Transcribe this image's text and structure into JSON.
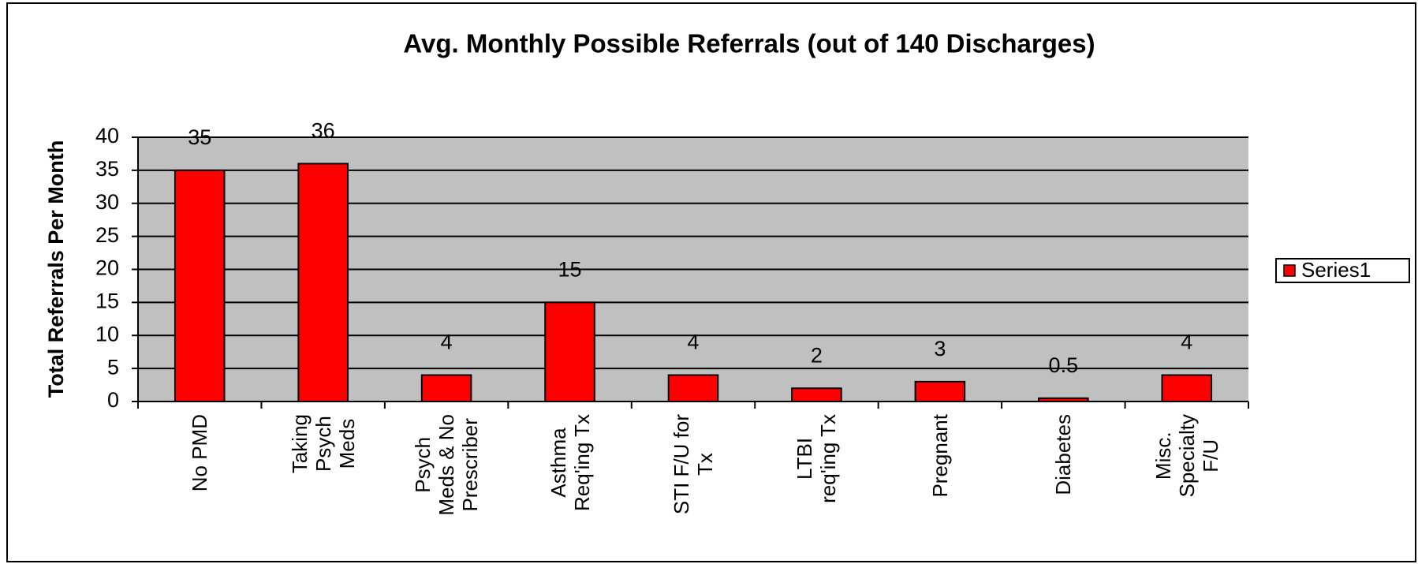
{
  "chart_data": {
    "type": "bar",
    "title": "Avg. Monthly Possible Referrals  (out of 140 Discharges)",
    "y_label": "Total Referrals Per Month",
    "categories": [
      "No PMD",
      "Taking\nPsych\nMeds",
      "Psych\nMeds & No\nPrescriber",
      "Asthma\nReq'ing Tx",
      "STI F/U for\nTx",
      "LTBI\nreq'ing Tx",
      "Pregnant",
      "Diabetes",
      "Misc.\nSpecialty\nF/U"
    ],
    "series": [
      {
        "name": "Series1",
        "color": "#ff0000",
        "values": [
          35,
          36,
          4,
          15,
          4,
          2,
          3,
          0.5,
          4
        ]
      }
    ],
    "ylim": [
      0,
      40
    ],
    "yticks": [
      0,
      5,
      10,
      15,
      20,
      25,
      30,
      35,
      40
    ],
    "grid": true,
    "plot_background": "#c0c0c0",
    "legend": "right"
  }
}
